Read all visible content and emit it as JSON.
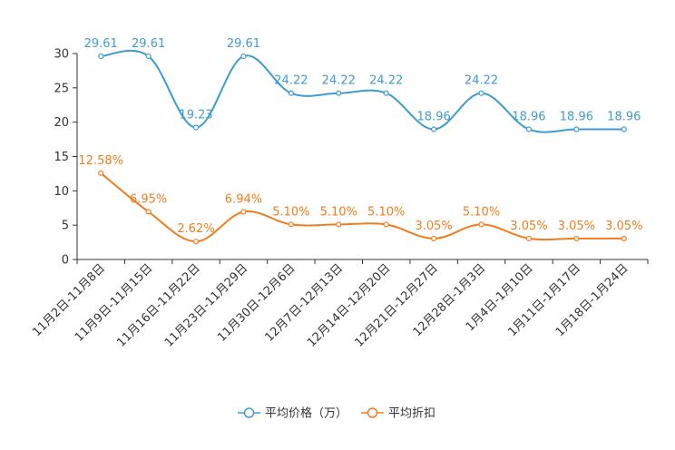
{
  "chart_data": {
    "type": "line",
    "title": "",
    "xlabel": "",
    "ylabel": "",
    "ylim": [
      0,
      30
    ],
    "yticks": [
      0,
      5,
      10,
      15,
      20,
      25,
      30
    ],
    "categories": [
      "11月2日-11月8日",
      "11月9日-11月15日",
      "11月16日-11月22日",
      "11月23日-11月29日",
      "11月30日-12月6日",
      "12月7日-12月13日",
      "12月14日-12月20日",
      "12月21日-12月27日",
      "12月28日-1月3日",
      "1月4日-1月10日",
      "1月11日-1月17日",
      "1月18日-1月24日"
    ],
    "series": [
      {
        "name": "平均价格（万）",
        "color": "#3e9ccf",
        "values": [
          29.61,
          29.61,
          19.23,
          29.61,
          24.22,
          24.22,
          24.22,
          18.96,
          24.22,
          18.96,
          18.96,
          18.96
        ],
        "labels": [
          "29.61",
          "29.61",
          "19.23",
          "29.61",
          "24.22",
          "24.22",
          "24.22",
          "18.96",
          "24.22",
          "18.96",
          "18.96",
          "18.96"
        ]
      },
      {
        "name": "平均折扣",
        "color": "#f07d1e",
        "values": [
          12.58,
          6.95,
          2.62,
          6.94,
          5.1,
          5.1,
          5.1,
          3.05,
          5.1,
          3.05,
          3.05,
          3.05
        ],
        "labels": [
          "12.58%",
          "6.95%",
          "2.62%",
          "6.94%",
          "5.10%",
          "5.10%",
          "5.10%",
          "3.05%",
          "5.10%",
          "3.05%",
          "3.05%",
          "3.05%"
        ]
      }
    ],
    "grid": false,
    "legend": "bottom-center"
  }
}
